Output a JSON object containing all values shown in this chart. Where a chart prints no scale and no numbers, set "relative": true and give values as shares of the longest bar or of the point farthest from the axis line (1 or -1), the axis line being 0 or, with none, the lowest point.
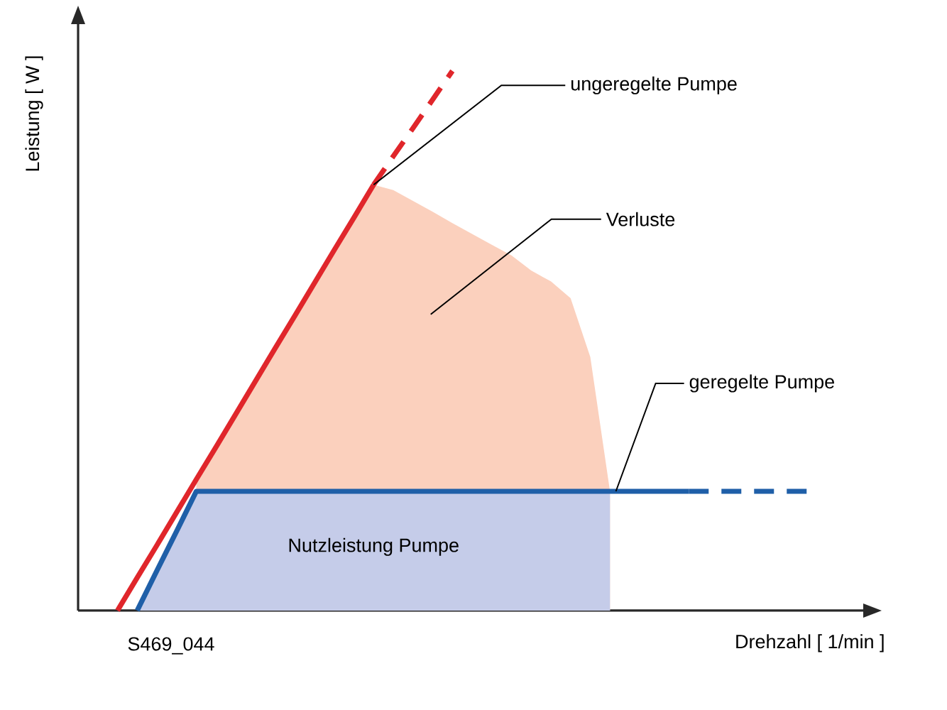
{
  "chart_data": {
    "type": "line",
    "relative": true,
    "xlabel": "Drehzahl [ 1/min ]",
    "ylabel": "Leistung [ W ]",
    "categories": [
      null,
      null,
      null,
      null,
      null,
      null,
      null,
      null,
      null,
      null,
      null,
      null,
      null,
      null,
      null,
      null,
      null,
      null,
      null,
      null,
      null,
      null,
      null,
      null,
      null,
      null,
      null,
      null,
      null,
      null,
      null,
      null,
      null,
      null,
      null,
      null,
      null,
      null,
      null,
      null
    ],
    "series": [
      {
        "type": "area",
        "color": "#fbd0bd",
        "values": [
          null,
          null,
          null,
          null,
          null,
          null,
          0.243,
          0.303,
          0.364,
          0.425,
          0.486,
          0.546,
          0.607,
          0.668,
          0.728,
          0.789,
          0.779,
          0.759,
          0.739,
          0.718,
          0.698,
          0.678,
          0.658,
          0.63,
          0.61,
          0.579,
          0.47,
          0.221,
          null,
          null,
          null,
          null,
          null,
          null,
          null,
          null,
          null,
          null,
          null,
          null
        ]
      },
      {
        "type": "area",
        "color": "#c5cce9",
        "values": [
          null,
          null,
          null,
          0,
          0.074,
          0.147,
          0.221,
          0.221,
          0.221,
          0.221,
          0.221,
          0.221,
          0.221,
          0.221,
          0.221,
          0.221,
          0.221,
          0.221,
          0.221,
          0.221,
          0.221,
          0.221,
          0.221,
          0.221,
          0.221,
          0.221,
          0.221,
          0.221,
          null,
          null,
          null,
          null,
          null,
          null,
          null,
          null,
          null,
          null,
          null,
          null
        ]
      },
      {
        "color": "#e0262b",
        "line_style": "solid",
        "values": [
          null,
          null,
          0,
          0.061,
          0.121,
          0.182,
          0.243,
          0.303,
          0.364,
          0.425,
          0.486,
          0.546,
          0.607,
          0.668,
          0.728,
          0.789,
          null,
          null,
          null,
          null,
          null,
          null,
          null,
          null,
          null,
          null,
          null,
          null,
          null,
          null,
          null,
          null,
          null,
          null,
          null,
          null,
          null,
          null,
          null,
          null
        ]
      },
      {
        "color": "#e0262b",
        "line_style": "dashed",
        "values": [
          null,
          null,
          null,
          null,
          null,
          null,
          null,
          null,
          null,
          null,
          null,
          null,
          null,
          null,
          null,
          0.789,
          0.842,
          0.894,
          0.947,
          1,
          null,
          null,
          null,
          null,
          null,
          null,
          null,
          null,
          null,
          null,
          null,
          null,
          null,
          null,
          null,
          null,
          null,
          null,
          null,
          null
        ]
      },
      {
        "color": "#1f5fa8",
        "line_style": "solid",
        "values": [
          null,
          null,
          null,
          0,
          0.074,
          0.147,
          0.221,
          0.221,
          0.221,
          0.221,
          0.221,
          0.221,
          0.221,
          0.221,
          0.221,
          0.221,
          0.221,
          0.221,
          0.221,
          0.221,
          0.221,
          0.221,
          0.221,
          0.221,
          0.221,
          0.221,
          0.221,
          0.221,
          0.221,
          0.221,
          0.221,
          0.221,
          null,
          null,
          null,
          null,
          null,
          null,
          null,
          null
        ]
      },
      {
        "color": "#1f5fa8",
        "line_style": "dashed",
        "values": [
          null,
          null,
          null,
          null,
          null,
          null,
          null,
          null,
          null,
          null,
          null,
          null,
          null,
          null,
          null,
          null,
          null,
          null,
          null,
          null,
          null,
          null,
          null,
          null,
          null,
          null,
          null,
          null,
          null,
          null,
          null,
          0.221,
          0.221,
          0.221,
          0.221,
          0.221,
          0.221,
          0.221,
          null,
          null
        ]
      }
    ],
    "annotations": [
      "ungeregelte Pumpe",
      "Verluste",
      "geregelte Pumpe",
      "Nutzleistung Pumpe",
      "S469_044"
    ]
  }
}
